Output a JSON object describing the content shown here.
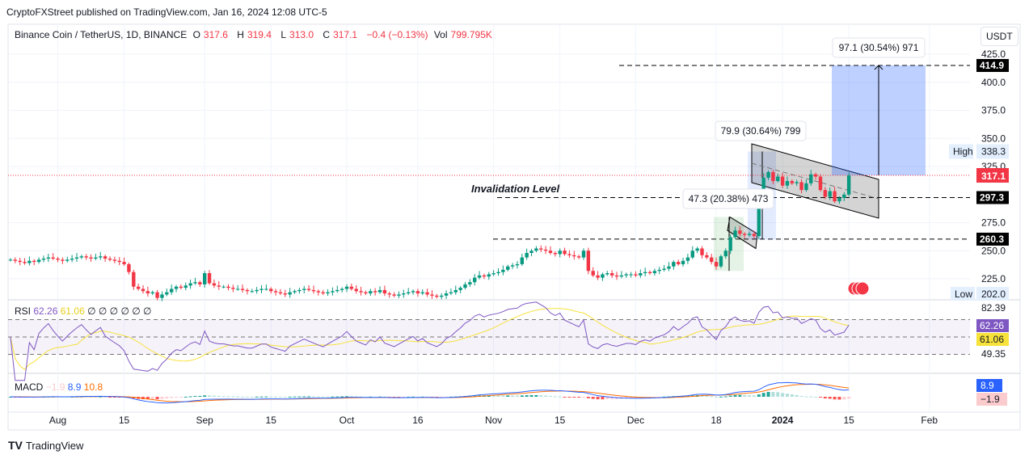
{
  "header": {
    "published": "CryptoFXStreet published on TradingView.com, Jan 16, 2024 12:08 UTC-5"
  },
  "legend": {
    "symbol": "Binance Coin / TetherUS, 1D, BINANCE",
    "o_label": "O",
    "o": "317.6",
    "h_label": "H",
    "h": "319.4",
    "l_label": "L",
    "l": "313.0",
    "c_label": "C",
    "c": "317.1",
    "change": "−0.4 (−0.13%)",
    "vol_label": "Vol",
    "vol": "799.795K"
  },
  "currency_button": "USDT",
  "footer": {
    "brand": "TradingView"
  },
  "colors": {
    "up": "#089981",
    "down": "#f23645",
    "rsi": "#7e57c2",
    "rsi_ma": "#f7e13b",
    "macd": "#2962ff",
    "signal": "#ff6d00",
    "measure_blue": "#2962ff",
    "measure_green": "#4caf50"
  },
  "chart_data": {
    "type": "candlestick",
    "start_date": "2023-07-22",
    "interval": "1D",
    "closes": [
      242,
      241,
      240,
      239,
      241,
      240,
      242,
      243,
      244,
      243,
      242,
      241,
      242,
      243,
      244,
      245,
      244,
      243,
      244,
      245,
      243,
      242,
      241,
      240,
      238,
      231,
      218,
      216,
      214,
      212,
      213,
      208,
      211,
      213,
      216,
      218,
      217,
      219,
      221,
      222,
      220,
      230,
      221,
      219,
      218,
      218,
      217,
      216,
      216,
      215,
      214,
      214,
      215,
      216,
      216,
      214,
      213,
      212,
      211,
      213,
      214,
      215,
      216,
      215,
      214,
      213,
      212,
      213,
      214,
      215,
      216,
      218,
      216,
      214,
      213,
      212,
      214,
      213,
      215,
      212,
      211,
      210,
      211,
      212,
      213,
      214,
      212,
      213,
      211,
      210,
      209,
      210,
      212,
      213,
      215,
      217,
      220,
      222,
      226,
      228,
      227,
      229,
      230,
      231,
      233,
      236,
      237,
      238,
      244,
      248,
      250,
      252,
      251,
      250,
      248,
      247,
      250,
      247,
      246,
      245,
      244,
      250,
      232,
      228,
      226,
      229,
      230,
      228,
      227,
      228,
      229,
      229,
      228,
      230,
      231,
      230,
      232,
      233,
      234,
      236,
      240,
      238,
      241,
      244,
      250,
      252,
      246,
      244,
      240,
      236,
      245,
      250,
      262,
      268,
      265,
      264,
      265,
      263,
      290,
      315,
      320,
      312,
      316,
      308,
      312,
      310,
      311,
      304,
      310,
      318,
      316,
      304,
      298,
      303,
      294,
      297,
      300,
      317
    ],
    "price_ticks": [
      "425.0",
      "400.0",
      "375.0",
      "350.0",
      "325.0",
      "275.0",
      "250.0",
      "225.0"
    ],
    "price_range": [
      195,
      430
    ],
    "time_ticks": [
      {
        "label": "Aug",
        "index": 10
      },
      {
        "label": "15",
        "index": 24
      },
      {
        "label": "Sep",
        "index": 41
      },
      {
        "label": "15",
        "index": 55
      },
      {
        "label": "Oct",
        "index": 71
      },
      {
        "label": "16",
        "index": 86
      },
      {
        "label": "Nov",
        "index": 102
      },
      {
        "label": "15",
        "index": 116
      },
      {
        "label": "Dec",
        "index": 132
      },
      {
        "label": "18",
        "index": 149
      },
      {
        "label": "2024",
        "index": 163
      },
      {
        "label": "15",
        "index": 177
      },
      {
        "label": "Feb",
        "index": 194
      }
    ],
    "markers": {
      "high_label": "High",
      "high": "338.3",
      "low_label": "Low",
      "low": "202.0",
      "last": "317.1"
    },
    "levels": [
      {
        "price": 414.9,
        "label": "414.9"
      },
      {
        "price": 297.3,
        "label": "297.3"
      },
      {
        "price": 260.3,
        "label": "260.3"
      }
    ],
    "annotations": {
      "invalidation": "Invalidation Level",
      "measure1": "47.3 (20.38%) 473",
      "measure2": "79.9 (30.64%) 799",
      "measure3": "97.1 (30.54%) 971"
    },
    "rsi": {
      "label": "RSI",
      "value": "62.26",
      "ma": "61.06",
      "extras": "∅ ∅ ∅ ∅ ∅ ∅",
      "ticks": [
        "82.39",
        "49.35"
      ]
    },
    "macd": {
      "label": "MACD",
      "hist": "−1.9",
      "macd": "8.9",
      "signal": "10.8"
    }
  }
}
